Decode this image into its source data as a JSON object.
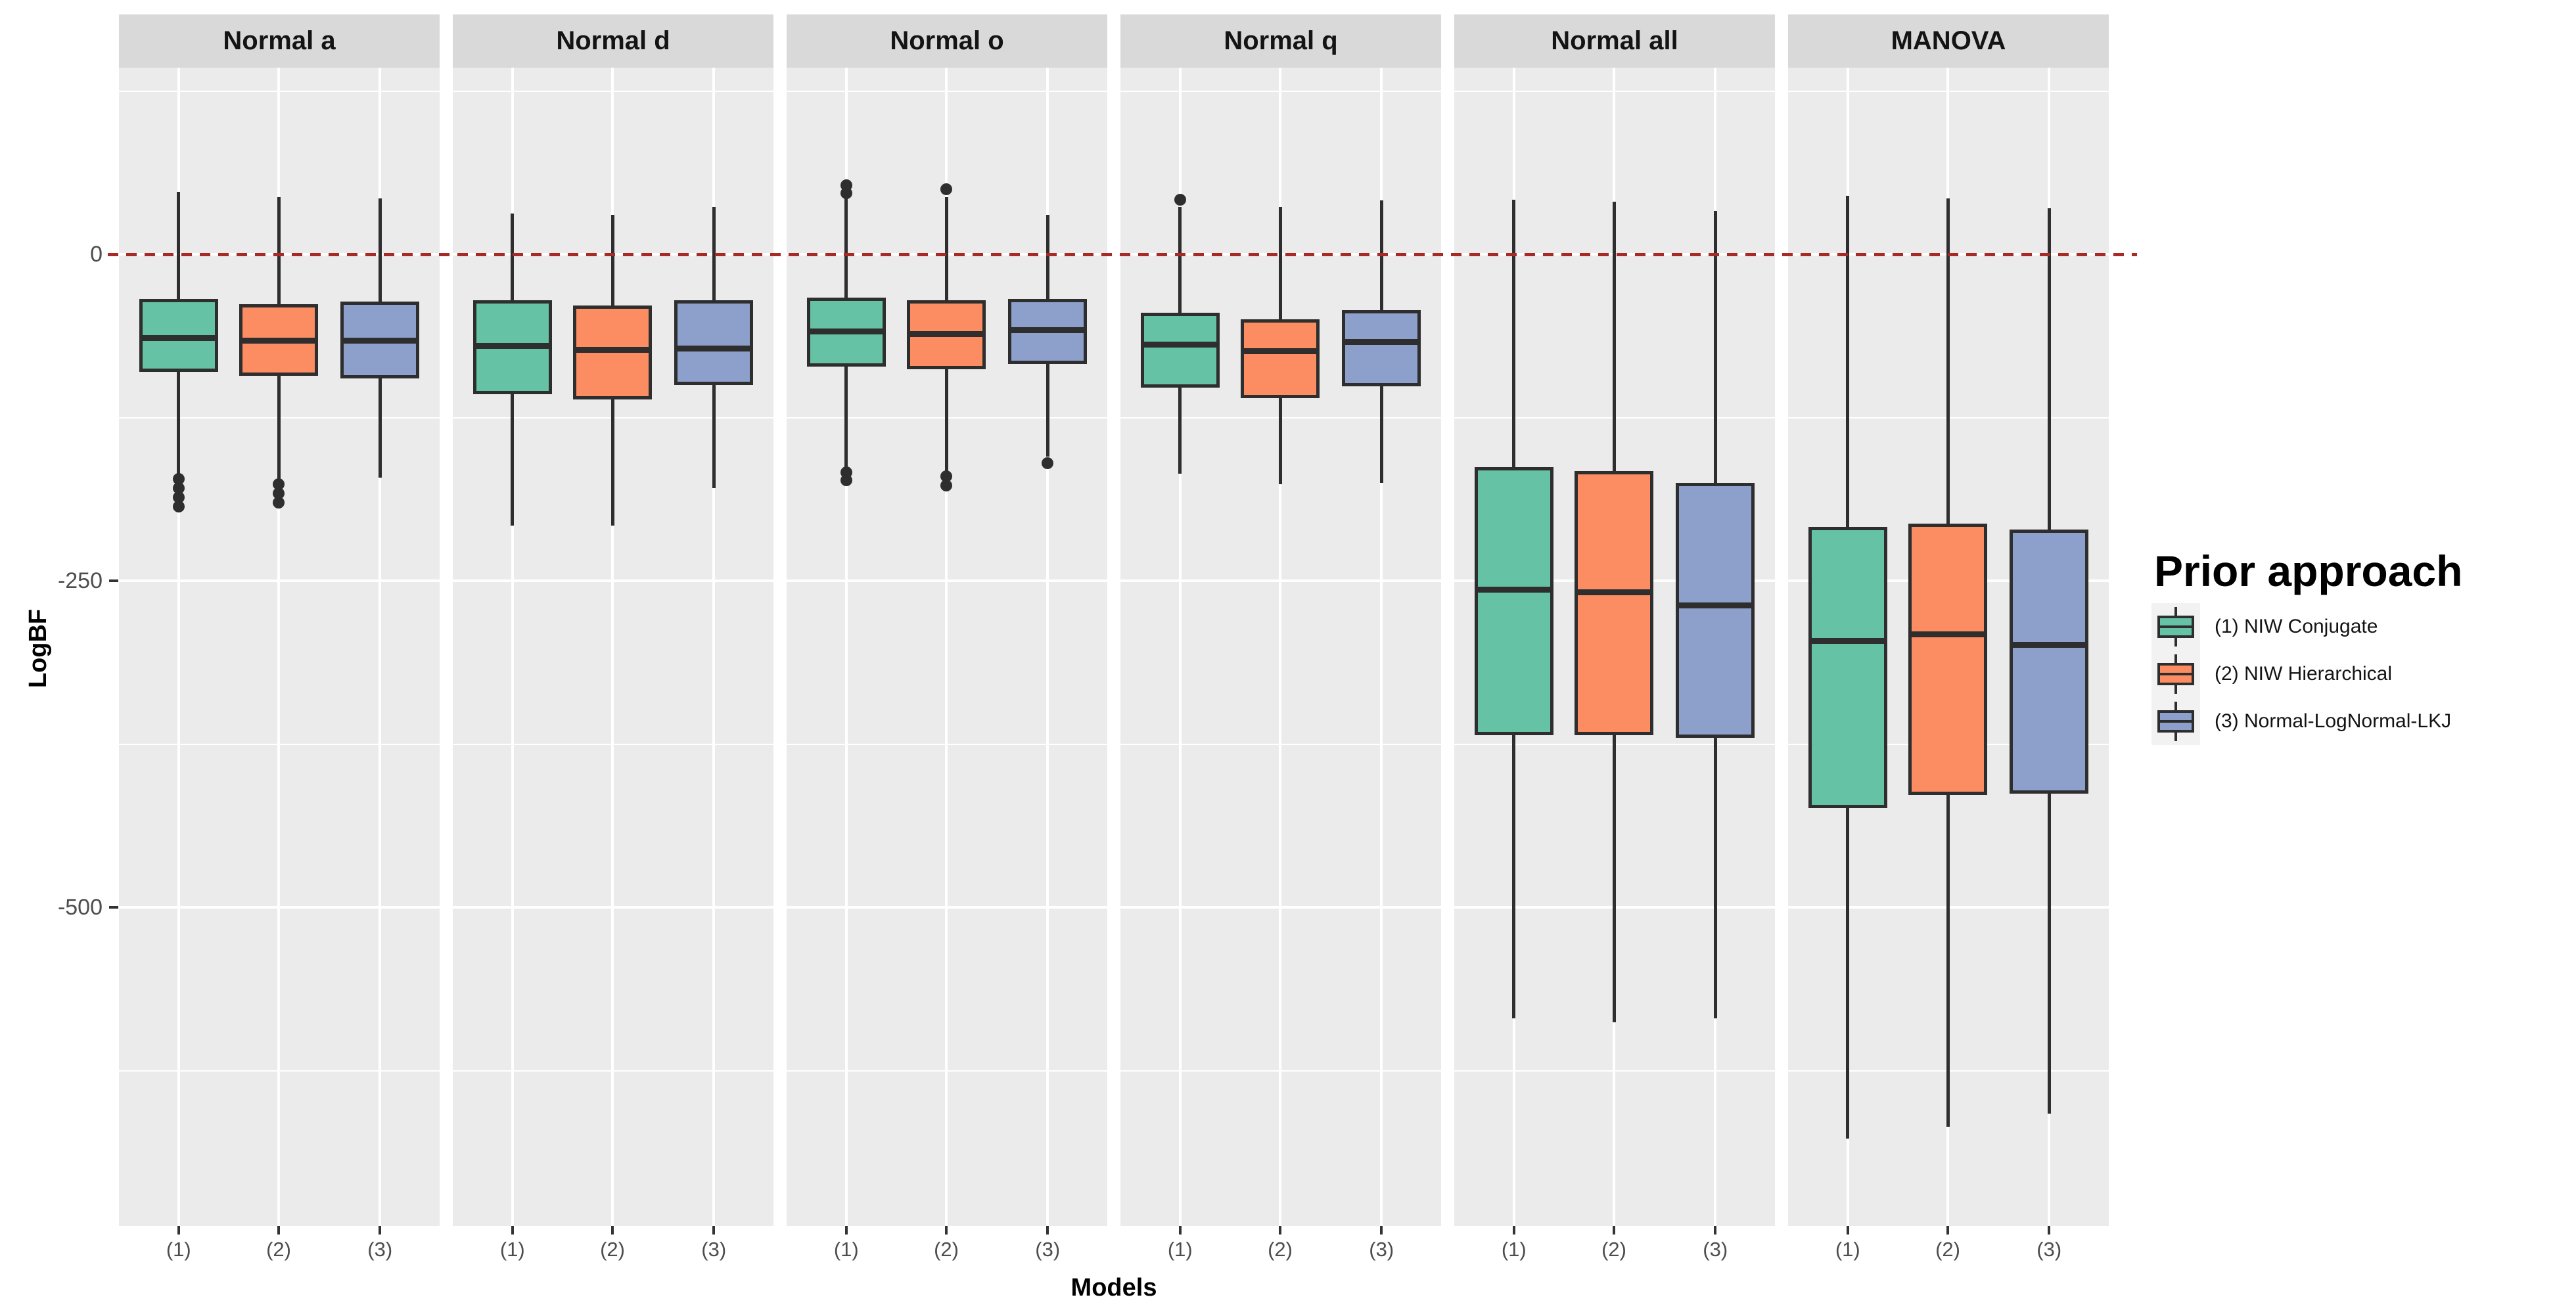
{
  "axes": {
    "y": {
      "title": "LogBF",
      "ticks": [
        {
          "label": "0",
          "value": 0
        },
        {
          "label": "-250",
          "value": -250
        },
        {
          "label": "-500",
          "value": -500
        }
      ],
      "minor_grid_values": [
        125,
        -125,
        -375,
        -625
      ]
    },
    "x": {
      "title": "Models",
      "tick_labels": [
        "(1)",
        "(2)",
        "(3)"
      ]
    }
  },
  "reference_line": {
    "value": 0,
    "style": "dashed",
    "color": "#A82A26"
  },
  "legend": {
    "title": "Prior approach",
    "items": [
      {
        "label": "(1) NIW Conjugate",
        "color": "#66C2A5"
      },
      {
        "label": "(2) NIW Hierarchical",
        "color": "#FC8D62"
      },
      {
        "label": "(3) Normal-LogNormal-LKJ",
        "color": "#8DA0CB"
      }
    ]
  },
  "colors": {
    "panel_bg": "#EBEBEB",
    "strip_bg": "#D9D9D9",
    "grid": "#FFFFFF",
    "box_border": "#2E2E2E",
    "tick_text": "#4D4D4D",
    "ref_line": "#A82A26",
    "legend_key_bg": "#F2F2F2",
    "series": [
      "#66C2A5",
      "#FC8D62",
      "#8DA0CB"
    ]
  },
  "chart_data": {
    "type": "boxplot",
    "title": "",
    "xlabel": "Models",
    "ylabel": "LogBF",
    "ylim_shown": [
      -744,
      143
    ],
    "grid": true,
    "legend_position": "right",
    "series_names": [
      "(1) NIW Conjugate",
      "(2) NIW Hierarchical",
      "(3) Normal-LogNormal-LKJ"
    ],
    "x_categories": [
      "(1)",
      "(2)",
      "(3)"
    ],
    "facets": [
      {
        "label": "Normal a",
        "boxes": [
          {
            "x": "(1)",
            "whisker_low": -169,
            "q1": -90,
            "median": -64,
            "q3": -34,
            "whisker_high": 48,
            "outliers_low": [
              -172,
              -179,
              -186,
              -193
            ],
            "outliers_high": []
          },
          {
            "x": "(2)",
            "whisker_low": -173,
            "q1": -93,
            "median": -66,
            "q3": -38,
            "whisker_high": 44,
            "outliers_low": [
              -176,
              -183,
              -190
            ],
            "outliers_high": []
          },
          {
            "x": "(3)",
            "whisker_low": -171,
            "q1": -95,
            "median": -66,
            "q3": -36,
            "whisker_high": 43,
            "outliers_low": [],
            "outliers_high": []
          }
        ]
      },
      {
        "label": "Normal d",
        "boxes": [
          {
            "x": "(1)",
            "whisker_low": -208,
            "q1": -107,
            "median": -70,
            "q3": -35,
            "whisker_high": 31,
            "outliers_low": [],
            "outliers_high": []
          },
          {
            "x": "(2)",
            "whisker_low": -208,
            "q1": -111,
            "median": -73,
            "q3": -39,
            "whisker_high": 30,
            "outliers_low": [],
            "outliers_high": []
          },
          {
            "x": "(3)",
            "whisker_low": -179,
            "q1": -100,
            "median": -72,
            "q3": -35,
            "whisker_high": 36,
            "outliers_low": [],
            "outliers_high": []
          }
        ]
      },
      {
        "label": "Normal o",
        "boxes": [
          {
            "x": "(1)",
            "whisker_low": -164,
            "q1": -86,
            "median": -59,
            "q3": -33,
            "whisker_high": 44,
            "outliers_low": [
              -167,
              -173
            ],
            "outliers_high": [
              47,
              53
            ]
          },
          {
            "x": "(2)",
            "whisker_low": -170,
            "q1": -88,
            "median": -61,
            "q3": -35,
            "whisker_high": 44,
            "outliers_low": [
              -170,
              -177
            ],
            "outliers_high": [
              50
            ]
          },
          {
            "x": "(3)",
            "whisker_low": -155,
            "q1": -84,
            "median": -58,
            "q3": -34,
            "whisker_high": 30,
            "outliers_low": [
              -160
            ],
            "outliers_high": []
          }
        ]
      },
      {
        "label": "Normal q",
        "boxes": [
          {
            "x": "(1)",
            "whisker_low": -168,
            "q1": -102,
            "median": -69,
            "q3": -45,
            "whisker_high": 36,
            "outliers_low": [],
            "outliers_high": [
              42
            ]
          },
          {
            "x": "(2)",
            "whisker_low": -176,
            "q1": -110,
            "median": -74,
            "q3": -50,
            "whisker_high": 36,
            "outliers_low": [],
            "outliers_high": []
          },
          {
            "x": "(3)",
            "whisker_low": -175,
            "q1": -101,
            "median": -67,
            "q3": -43,
            "whisker_high": 41,
            "outliers_low": [],
            "outliers_high": []
          }
        ]
      },
      {
        "label": "Normal all",
        "boxes": [
          {
            "x": "(1)",
            "whisker_low": -585,
            "q1": -368,
            "median": -257,
            "q3": -163,
            "whisker_high": 42,
            "outliers_low": [],
            "outliers_high": []
          },
          {
            "x": "(2)",
            "whisker_low": -588,
            "q1": -368,
            "median": -259,
            "q3": -166,
            "whisker_high": 40,
            "outliers_low": [],
            "outliers_high": []
          },
          {
            "x": "(3)",
            "whisker_low": -585,
            "q1": -370,
            "median": -269,
            "q3": -175,
            "whisker_high": 33,
            "outliers_low": [],
            "outliers_high": []
          }
        ]
      },
      {
        "label": "MANOVA",
        "boxes": [
          {
            "x": "(1)",
            "whisker_low": -677,
            "q1": -424,
            "median": -296,
            "q3": -209,
            "whisker_high": 45,
            "outliers_low": [],
            "outliers_high": []
          },
          {
            "x": "(2)",
            "whisker_low": -668,
            "q1": -414,
            "median": -291,
            "q3": -206,
            "whisker_high": 43,
            "outliers_low": [],
            "outliers_high": []
          },
          {
            "x": "(3)",
            "whisker_low": -658,
            "q1": -413,
            "median": -299,
            "q3": -211,
            "whisker_high": 35,
            "outliers_low": [],
            "outliers_high": []
          }
        ]
      }
    ]
  }
}
